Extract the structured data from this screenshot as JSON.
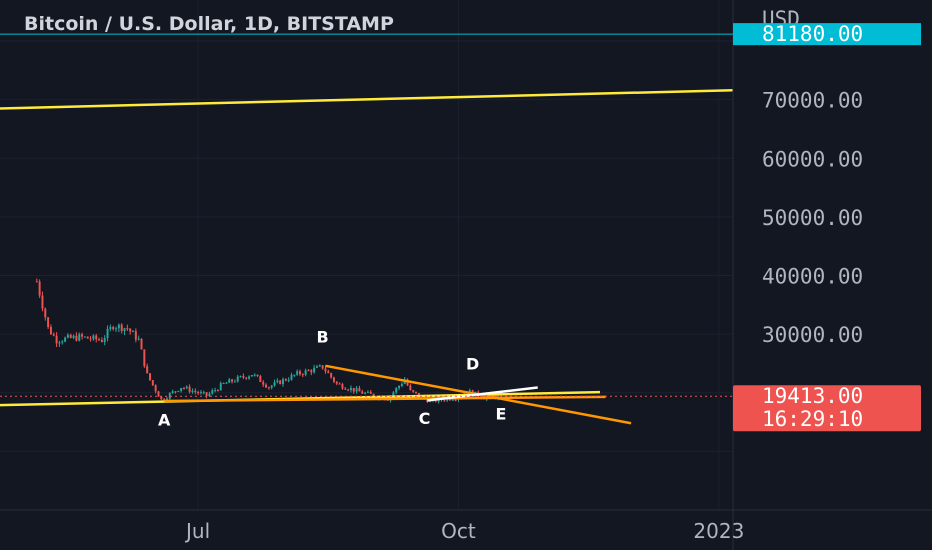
{
  "header": {
    "title": "Bitcoin / U.S. Dollar, 1D, BITSTAMP"
  },
  "price_axis": {
    "currency": "USD"
  },
  "badges": {
    "target_price": "81180.00",
    "current_price": "19413.00",
    "countdown": "16:29:10"
  },
  "colors": {
    "background": "#131722",
    "grid": "#1c2030",
    "candle_up": "#26a69a",
    "candle_down": "#ef5350",
    "yellow_line": "#ffeb3b",
    "orange_line": "#ff9800",
    "white_line": "#ffffff",
    "target_badge": "#00bcd4",
    "current_badge": "#ef5350"
  },
  "chart_data": {
    "type": "candlestick",
    "title": "Bitcoin / U.S. Dollar, 1D, BITSTAMP",
    "ylabel": "USD",
    "ylim": [
      0,
      87000
    ],
    "y_ticks": [
      30000,
      40000,
      50000,
      60000,
      70000
    ],
    "y_tick_labels": [
      "30000.00",
      "40000.00",
      "50000.00",
      "60000.00",
      "70000.00"
    ],
    "x_ticks": [
      {
        "date": "2022-07-01",
        "label": "Jul"
      },
      {
        "date": "2022-10-01",
        "label": "Oct"
      },
      {
        "date": "2023-01-01",
        "label": "2023"
      }
    ],
    "xlim": [
      "2022-04-22",
      "2023-01-06"
    ],
    "price_levels": [
      {
        "name": "target",
        "value": 81180
      },
      {
        "name": "current",
        "value": 19413
      }
    ],
    "anchors": [
      {
        "date": "2022-05-05",
        "value": 39000
      },
      {
        "date": "2022-05-07",
        "value": 35000
      },
      {
        "date": "2022-05-09",
        "value": 31000
      },
      {
        "date": "2022-05-12",
        "value": 29000
      },
      {
        "date": "2022-05-20",
        "value": 29500
      },
      {
        "date": "2022-05-28",
        "value": 29000
      },
      {
        "date": "2022-06-01",
        "value": 31500
      },
      {
        "date": "2022-06-06",
        "value": 31000
      },
      {
        "date": "2022-06-10",
        "value": 29000
      },
      {
        "date": "2022-06-13",
        "value": 23000
      },
      {
        "date": "2022-06-18",
        "value": 18800
      },
      {
        "date": "2022-06-25",
        "value": 21000
      },
      {
        "date": "2022-07-04",
        "value": 19500
      },
      {
        "date": "2022-07-10",
        "value": 21500
      },
      {
        "date": "2022-07-20",
        "value": 23200
      },
      {
        "date": "2022-07-26",
        "value": 21000
      },
      {
        "date": "2022-08-05",
        "value": 23200
      },
      {
        "date": "2022-08-14",
        "value": 24400
      },
      {
        "date": "2022-08-19",
        "value": 21500
      },
      {
        "date": "2022-08-28",
        "value": 20000
      },
      {
        "date": "2022-09-06",
        "value": 19000
      },
      {
        "date": "2022-09-12",
        "value": 22300
      },
      {
        "date": "2022-09-14",
        "value": 20200
      },
      {
        "date": "2022-09-21",
        "value": 18600
      },
      {
        "date": "2022-10-01",
        "value": 19300
      },
      {
        "date": "2022-10-05",
        "value": 20100
      },
      {
        "date": "2022-10-10",
        "value": 19200
      },
      {
        "date": "2022-10-15",
        "value": 19413
      }
    ],
    "drawings": [
      {
        "color": "yellow",
        "from": {
          "date": "2022-04-22",
          "value": 68500
        },
        "to": {
          "date": "2023-01-06",
          "value": 71600
        }
      },
      {
        "color": "yellow",
        "from": {
          "date": "2022-04-22",
          "value": 17900
        },
        "to": {
          "date": "2022-11-20",
          "value": 20100
        }
      },
      {
        "color": "orange",
        "from": {
          "date": "2022-06-19",
          "value": 18600
        },
        "to": {
          "date": "2022-11-22",
          "value": 19300
        }
      },
      {
        "color": "orange",
        "from": {
          "date": "2022-08-15",
          "value": 24600
        },
        "to": {
          "date": "2022-12-01",
          "value": 14800
        }
      },
      {
        "color": "white",
        "from": {
          "date": "2022-09-20",
          "value": 18700
        },
        "to": {
          "date": "2022-10-29",
          "value": 20900
        }
      }
    ],
    "annotations": [
      {
        "text": "A",
        "date": "2022-06-19",
        "value": 15400
      },
      {
        "text": "B",
        "date": "2022-08-14",
        "value": 29600
      },
      {
        "text": "C",
        "date": "2022-09-19",
        "value": 15700
      },
      {
        "text": "D",
        "date": "2022-10-06",
        "value": 25000
      },
      {
        "text": "E",
        "date": "2022-10-16",
        "value": 16500
      }
    ]
  }
}
